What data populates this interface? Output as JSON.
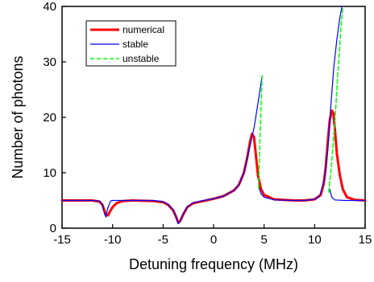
{
  "chart_data": {
    "type": "line",
    "title": "",
    "xlabel": "Detuning frequency (MHz)",
    "ylabel": "Number of photons",
    "xlim": [
      -15,
      15
    ],
    "ylim": [
      0,
      40
    ],
    "x_ticks": [
      -15,
      -10,
      -5,
      0,
      5,
      10,
      15
    ],
    "y_ticks": [
      0,
      10,
      20,
      30,
      40
    ],
    "grid": false,
    "legend_position": "top-left",
    "series": [
      {
        "name": "numerical",
        "color": "#ff0000",
        "style": "solid-thick",
        "segments": [
          [
            [
              -15,
              5
            ],
            [
              -13,
              5
            ],
            [
              -12,
              5
            ],
            [
              -11.3,
              4.8
            ],
            [
              -11,
              4.2
            ],
            [
              -10.7,
              2.6
            ],
            [
              -10.45,
              2.3
            ],
            [
              -10.2,
              3.2
            ],
            [
              -10,
              3.8
            ],
            [
              -9.6,
              4.5
            ],
            [
              -9,
              4.9
            ],
            [
              -8,
              5
            ],
            [
              -6,
              4.9
            ],
            [
              -5,
              4.7
            ],
            [
              -4.5,
              4.2
            ],
            [
              -4,
              3.2
            ],
            [
              -3.7,
              2
            ],
            [
              -3.5,
              1
            ],
            [
              -3.3,
              1.3
            ],
            [
              -3,
              2.5
            ],
            [
              -2.6,
              3.8
            ],
            [
              -2,
              4.5
            ],
            [
              -1,
              4.9
            ],
            [
              0,
              5.3
            ],
            [
              1,
              5.8
            ],
            [
              2,
              6.8
            ],
            [
              2.5,
              7.8
            ],
            [
              3,
              10
            ],
            [
              3.3,
              12.5
            ],
            [
              3.6,
              15.5
            ],
            [
              3.8,
              17
            ],
            [
              4,
              16.5
            ],
            [
              4.2,
              13
            ],
            [
              4.4,
              9.5
            ],
            [
              4.7,
              7
            ],
            [
              5,
              6
            ],
            [
              6,
              5.2
            ],
            [
              8,
              5
            ],
            [
              9,
              5
            ],
            [
              10,
              5.2
            ],
            [
              10.6,
              6
            ],
            [
              10.9,
              8
            ],
            [
              11.1,
              11
            ],
            [
              11.3,
              15.5
            ],
            [
              11.5,
              19.5
            ],
            [
              11.7,
              21.2
            ],
            [
              11.85,
              20.8
            ],
            [
              12,
              18
            ],
            [
              12.2,
              13.5
            ],
            [
              12.5,
              9.5
            ],
            [
              12.8,
              7
            ],
            [
              13.2,
              5.6
            ],
            [
              14,
              5.1
            ],
            [
              15,
              5
            ]
          ]
        ]
      },
      {
        "name": "stable",
        "color": "#0000ff",
        "style": "solid-thin",
        "segments": [
          [
            [
              -15,
              5
            ],
            [
              -12,
              5
            ],
            [
              -11.3,
              4.9
            ],
            [
              -11,
              4.2
            ],
            [
              -10.8,
              2.6
            ],
            [
              -10.65,
              2
            ],
            [
              -10.5,
              3.5
            ],
            [
              -10.2,
              4.9
            ],
            [
              -10,
              5
            ],
            [
              -8,
              5
            ],
            [
              -6,
              5
            ],
            [
              -5,
              4.8
            ],
            [
              -4.5,
              4.3
            ],
            [
              -4,
              3.3
            ],
            [
              -3.7,
              2
            ],
            [
              -3.5,
              0.8
            ],
            [
              -3.3,
              1.2
            ],
            [
              -3,
              2.6
            ],
            [
              -2.6,
              3.9
            ],
            [
              -2,
              4.6
            ],
            [
              -1,
              5
            ],
            [
              0,
              5.3
            ],
            [
              1,
              5.8
            ],
            [
              2,
              6.8
            ],
            [
              2.5,
              7.8
            ],
            [
              3,
              10
            ],
            [
              3.5,
              14
            ],
            [
              4,
              18
            ],
            [
              4.3,
              21.5
            ],
            [
              4.6,
              25
            ],
            [
              4.8,
              27.5
            ]
          ],
          [
            [
              4.5,
              7.3
            ],
            [
              4.7,
              6.2
            ],
            [
              5,
              5.6
            ],
            [
              6,
              5.1
            ],
            [
              8,
              5
            ],
            [
              9,
              5
            ],
            [
              10,
              5.2
            ],
            [
              10.5,
              5.8
            ],
            [
              11,
              9
            ],
            [
              11.3,
              14
            ],
            [
              11.6,
              22
            ],
            [
              11.9,
              29
            ],
            [
              12.2,
              34
            ],
            [
              12.5,
              38
            ],
            [
              12.7,
              40
            ]
          ],
          [
            [
              11.5,
              7
            ],
            [
              11.7,
              5.6
            ],
            [
              12,
              5.1
            ],
            [
              13,
              5
            ],
            [
              15,
              5
            ]
          ]
        ]
      },
      {
        "name": "unstable",
        "color": "#00ff00",
        "style": "dashed",
        "segments": [
          [
            [
              4.45,
              7.2
            ],
            [
              4.6,
              17
            ],
            [
              4.8,
              27.5
            ]
          ],
          [
            [
              11.4,
              6.5
            ],
            [
              11.7,
              12
            ],
            [
              12,
              19
            ],
            [
              12.3,
              28
            ],
            [
              12.6,
              36
            ],
            [
              12.8,
              40
            ]
          ]
        ]
      }
    ]
  }
}
